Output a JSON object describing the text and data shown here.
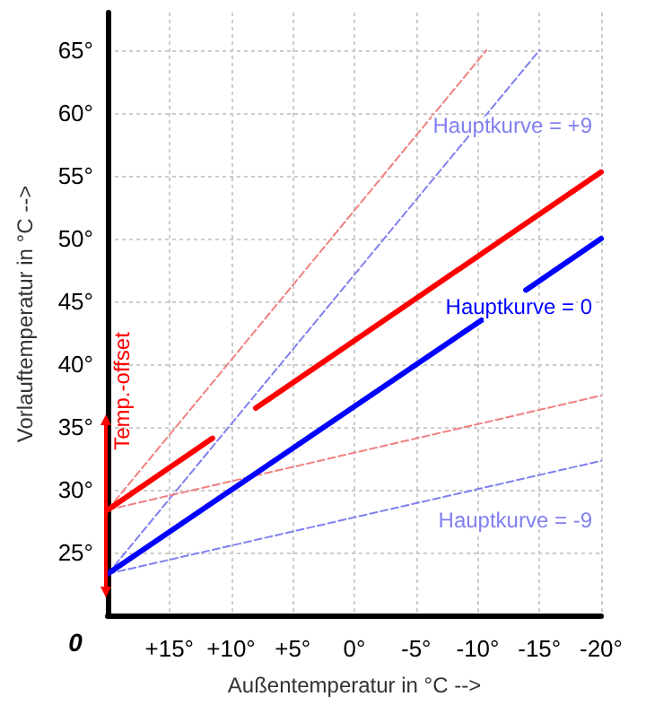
{
  "chart_data": {
    "type": "line",
    "xlabel": "Außentemperatur in °C -->",
    "ylabel": "Vorlauftemperatur in °C -->",
    "xlim": [
      20,
      -20
    ],
    "xticks": [
      {
        "value": 15,
        "label": "+15°"
      },
      {
        "value": 10,
        "label": "+10°"
      },
      {
        "value": 5,
        "label": "+5°"
      },
      {
        "value": 0,
        "label": "0°"
      },
      {
        "value": -5,
        "label": "-5°"
      },
      {
        "value": -10,
        "label": "-10°"
      },
      {
        "value": -15,
        "label": "-15°"
      },
      {
        "value": -20,
        "label": "-20°"
      }
    ],
    "ylim": [
      20,
      68
    ],
    "yticks": [
      {
        "value": 25,
        "label": "25°"
      },
      {
        "value": 30,
        "label": "30°"
      },
      {
        "value": 35,
        "label": "35°"
      },
      {
        "value": 40,
        "label": "40°"
      },
      {
        "value": 45,
        "label": "45°"
      },
      {
        "value": 50,
        "label": "50°"
      },
      {
        "value": 55,
        "label": "55°"
      },
      {
        "value": 60,
        "label": "60°"
      },
      {
        "value": 65,
        "label": "65°"
      }
    ],
    "grid": true,
    "legend": false,
    "marker": "none",
    "series": [
      {
        "color": "#f08080",
        "line_style": "dashed",
        "x": [
          20,
          -10.7
        ],
        "values": [
          28.4,
          65
        ]
      },
      {
        "name": "Hauptkurve = +9",
        "color": "#8080f0",
        "line_style": "dashed",
        "x": [
          20,
          -15
        ],
        "values": [
          23.3,
          65
        ]
      },
      {
        "color": "#f08080",
        "line_style": "dashed",
        "x": [
          20,
          -20
        ],
        "values": [
          28.4,
          37.5
        ]
      },
      {
        "name": "Hauptkurve = -9",
        "color": "#8080f0",
        "line_style": "dashed",
        "x": [
          20,
          -20
        ],
        "values": [
          23.3,
          32.3
        ]
      },
      {
        "color": "#ff0000",
        "line_style": "solid",
        "x": [
          20,
          11.5,
          10,
          8,
          -20
        ],
        "values": [
          28.4,
          34.1,
          null,
          36.5,
          55.3
        ]
      },
      {
        "name": "Hauptkurve = 0",
        "color": "#0000ff",
        "line_style": "solid",
        "x": [
          20,
          -10.3,
          -12,
          -13.9,
          -20
        ],
        "values": [
          23.3,
          43.5,
          null,
          45.9,
          50
        ]
      }
    ],
    "annotations": [
      "0",
      "Temp.-offset"
    ]
  }
}
